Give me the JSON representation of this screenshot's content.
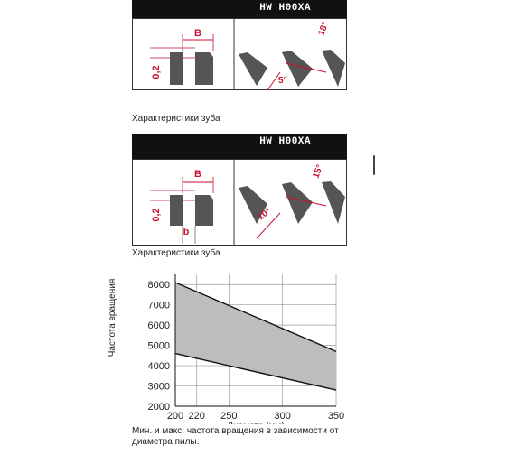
{
  "panels": [
    {
      "header": "HW H00XA",
      "label_B": "B",
      "label_b": "b",
      "label_02": "0,2",
      "angle_top": "18°",
      "angle_bottom": "5°",
      "caption": "Характеристики зуба"
    },
    {
      "header": "HW H00XA",
      "label_B": "B",
      "label_b": "b",
      "label_02": "0,2",
      "angle_top": "15°",
      "angle_bottom": "10°",
      "caption": "Характеристики зуба"
    }
  ],
  "colors": {
    "accent": "#c8102e",
    "header_bg": "#111111",
    "tooth": "#555555",
    "band_fill": "#bdbdbd"
  },
  "chart_data": {
    "type": "area",
    "xlabel": "Диаметр (мм)",
    "ylabel": "Частота вращения",
    "x_ticks": [
      "200",
      "220",
      "250",
      "300",
      "350"
    ],
    "y_ticks": [
      "2000",
      "3000",
      "4000",
      "5000",
      "6000",
      "7000",
      "8000"
    ],
    "xlim": [
      200,
      350
    ],
    "ylim": [
      2000,
      8500
    ],
    "grid": true,
    "series": [
      {
        "name": "max",
        "x": [
          200,
          350
        ],
        "y": [
          8100,
          4700
        ]
      },
      {
        "name": "min",
        "x": [
          200,
          350
        ],
        "y": [
          4600,
          2800
        ]
      }
    ],
    "caption": "Мин. и макс. частота вращения в зависимости от диаметра пилы."
  }
}
